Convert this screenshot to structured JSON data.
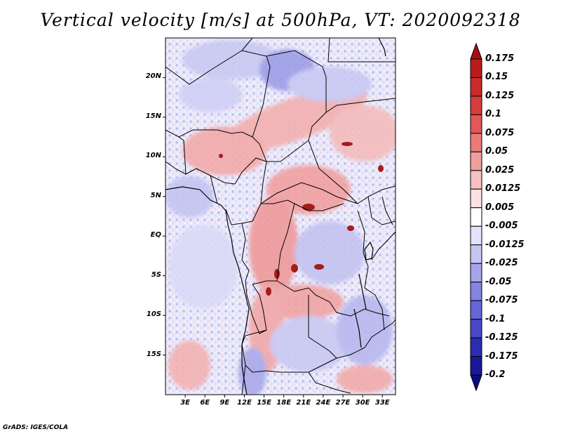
{
  "title": "Vertical velocity [m/s] at 500hPa, VT: 2020092318",
  "credit": "GrADS: IGES/COLA",
  "map": {
    "lat_ticks": [
      "20N",
      "15N",
      "10N",
      "5N",
      "EQ",
      "5S",
      "10S",
      "15S"
    ],
    "lat_values": [
      20,
      15,
      10,
      5,
      0,
      -5,
      -10,
      -15
    ],
    "lon_ticks": [
      "3E",
      "6E",
      "9E",
      "12E",
      "15E",
      "18E",
      "21E",
      "24E",
      "27E",
      "30E",
      "33E"
    ],
    "lon_values": [
      3,
      6,
      9,
      12,
      15,
      18,
      21,
      24,
      27,
      30,
      33
    ],
    "lon_range": [
      0,
      35
    ],
    "lat_range": [
      -20,
      25
    ]
  },
  "colorbar": {
    "labels": [
      "0.175",
      "0.15",
      "0.125",
      "0.1",
      "0.075",
      "0.05",
      "0.025",
      "0.0125",
      "0.005",
      "-0.005",
      "-0.0125",
      "-0.025",
      "-0.05",
      "-0.075",
      "-0.1",
      "-0.125",
      "-0.175",
      "-0.2"
    ],
    "colors": [
      "#a50f15",
      "#b91c1c",
      "#cb2a2a",
      "#d83c3c",
      "#e35757",
      "#ec7a7a",
      "#f29d9d",
      "#f7c1c1",
      "#fbe2e2",
      "#ffffff",
      "#e3e3fb",
      "#c6c6f4",
      "#a5a5ec",
      "#8484e3",
      "#6565d8",
      "#4848c9",
      "#2c2cb3",
      "#18189a",
      "#0c0c80"
    ]
  }
}
